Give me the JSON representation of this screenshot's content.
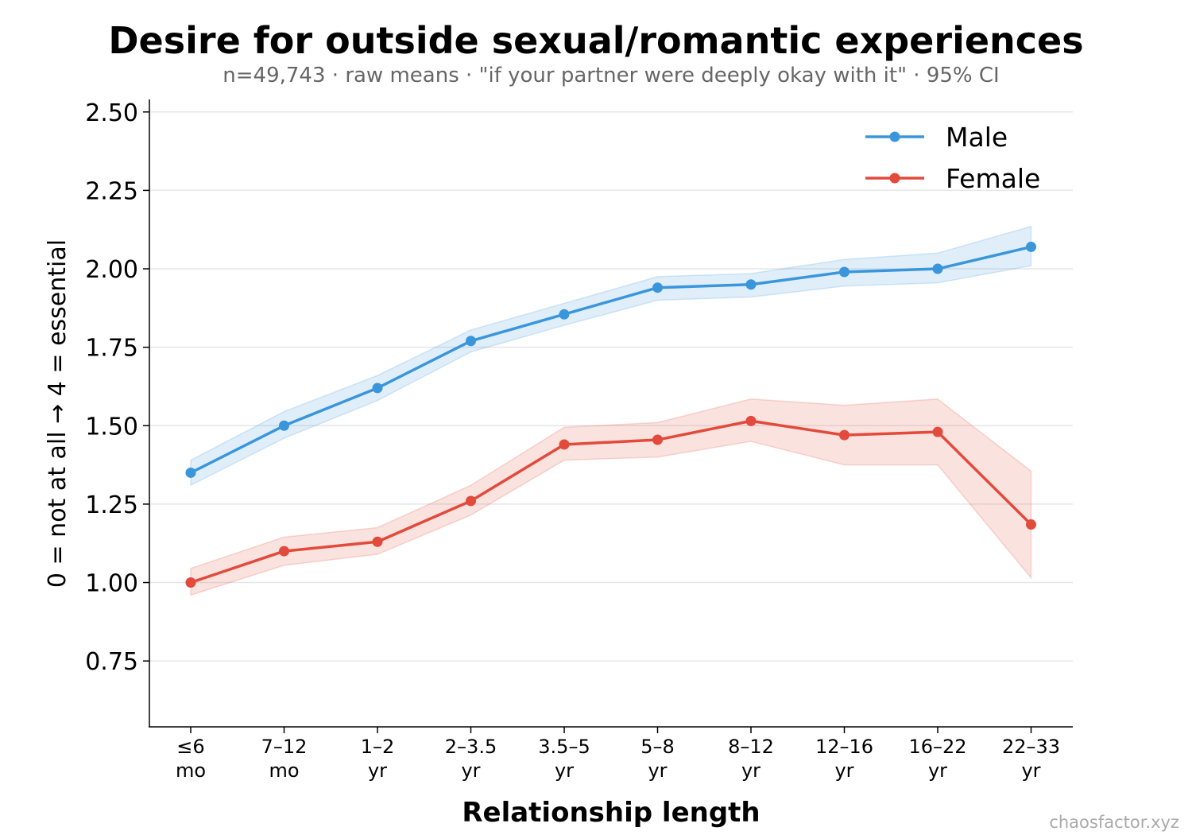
{
  "chart_data": {
    "type": "line",
    "title": "Desire for outside sexual/romantic experiences",
    "subtitle": "n=49,743 · raw means · \"if your partner were deeply okay with it\" · 95% CI",
    "xlabel": "Relationship length",
    "ylabel": "0 = not at all → 4 = essential",
    "categories": [
      [
        "≤6",
        "mo"
      ],
      [
        "7–12",
        "mo"
      ],
      [
        "1–2",
        "yr"
      ],
      [
        "2–3.5",
        "yr"
      ],
      [
        "3.5–5",
        "yr"
      ],
      [
        "5–8",
        "yr"
      ],
      [
        "8–12",
        "yr"
      ],
      [
        "12–16",
        "yr"
      ],
      [
        "16–22",
        "yr"
      ],
      [
        "22–33",
        "yr"
      ]
    ],
    "ylim": [
      0.54,
      2.54
    ],
    "yticks": [
      "0.75",
      "1.00",
      "1.25",
      "1.50",
      "1.75",
      "2.00",
      "2.25",
      "2.50"
    ],
    "grid": "horizontal",
    "legend_position": "top-right",
    "series": [
      {
        "name": "Male",
        "color": "#3a96db",
        "values": [
          1.35,
          1.5,
          1.62,
          1.77,
          1.855,
          1.94,
          1.95,
          1.99,
          2.0,
          2.07
        ],
        "ci_low": [
          1.31,
          1.46,
          1.58,
          1.735,
          1.82,
          1.9,
          1.91,
          1.945,
          1.955,
          2.01
        ],
        "ci_high": [
          1.39,
          1.545,
          1.66,
          1.805,
          1.89,
          1.975,
          1.985,
          2.03,
          2.05,
          2.135
        ]
      },
      {
        "name": "Female",
        "color": "#e24a3b",
        "values": [
          1.0,
          1.1,
          1.13,
          1.26,
          1.44,
          1.455,
          1.515,
          1.47,
          1.48,
          1.185
        ],
        "ci_low": [
          0.96,
          1.055,
          1.09,
          1.215,
          1.39,
          1.4,
          1.45,
          1.375,
          1.375,
          1.015
        ],
        "ci_high": [
          1.045,
          1.145,
          1.175,
          1.31,
          1.495,
          1.51,
          1.585,
          1.565,
          1.585,
          1.355
        ]
      }
    ]
  },
  "watermark": "chaosfactor.xyz"
}
